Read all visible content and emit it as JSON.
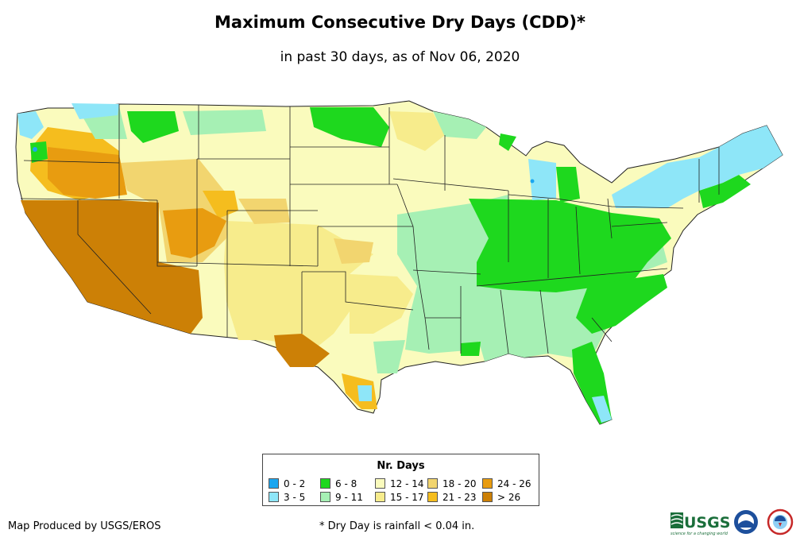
{
  "header": {
    "title": "Maximum Consecutive Dry Days (CDD)*",
    "subtitle": "in past 30 days, as of Nov 06, 2020"
  },
  "legend": {
    "title": "Nr. Days",
    "items": [
      {
        "label": "0 - 2",
        "color": "#1aa6f0"
      },
      {
        "label": "3 - 5",
        "color": "#8ee6f8"
      },
      {
        "label": "6 - 8",
        "color": "#1ed81e"
      },
      {
        "label": "9 - 11",
        "color": "#a6f0b4"
      },
      {
        "label": "12 - 14",
        "color": "#fafbbd"
      },
      {
        "label": "15 - 17",
        "color": "#f7ec8c"
      },
      {
        "label": "18 - 20",
        "color": "#f2d56f"
      },
      {
        "label": "21 - 23",
        "color": "#f5bd1e"
      },
      {
        "label": "24 - 26",
        "color": "#e89c10"
      },
      {
        "label": "> 26",
        "color": "#cc8006"
      }
    ]
  },
  "footer": {
    "credit": "Map Produced by USGS/EROS",
    "footnote": "* Dry Day is rainfall < 0.04 in."
  },
  "logos": {
    "usgs_text": "USGS",
    "usgs_tagline": "science for a changing world"
  }
}
